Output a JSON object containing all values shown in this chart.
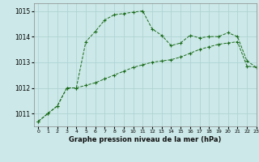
{
  "line1_x": [
    0,
    1,
    2,
    3,
    4,
    5,
    6,
    7,
    8,
    9,
    10,
    11,
    12,
    13,
    14,
    15,
    16,
    17,
    18,
    19,
    20,
    21,
    22,
    23
  ],
  "line1_y": [
    1010.7,
    1011.0,
    1011.3,
    1012.0,
    1012.0,
    1013.8,
    1014.2,
    1014.65,
    1014.85,
    1014.9,
    1014.95,
    1015.0,
    1014.3,
    1014.05,
    1013.65,
    1013.75,
    1014.05,
    1013.95,
    1014.0,
    1014.0,
    1014.15,
    1014.0,
    1013.05,
    1012.8
  ],
  "line2_x": [
    0,
    1,
    2,
    3,
    4,
    5,
    6,
    7,
    8,
    9,
    10,
    11,
    12,
    13,
    14,
    15,
    16,
    17,
    18,
    19,
    20,
    21,
    22,
    23
  ],
  "line2_y": [
    1010.7,
    1011.0,
    1011.3,
    1012.0,
    1012.0,
    1012.1,
    1012.2,
    1012.35,
    1012.5,
    1012.65,
    1012.8,
    1012.9,
    1013.0,
    1013.05,
    1013.1,
    1013.2,
    1013.35,
    1013.5,
    1013.6,
    1013.7,
    1013.75,
    1013.8,
    1012.85,
    1012.8
  ],
  "line_color": "#1a6b1a",
  "bg_color": "#cce8e8",
  "grid_color": "#aad0d0",
  "xlabel": "Graphe pression niveau de la mer (hPa)",
  "ylim": [
    1010.5,
    1015.3
  ],
  "xlim": [
    -0.5,
    23
  ],
  "yticks": [
    1011,
    1012,
    1013,
    1014,
    1015
  ],
  "xticks": [
    0,
    1,
    2,
    3,
    4,
    5,
    6,
    7,
    8,
    9,
    10,
    11,
    12,
    13,
    14,
    15,
    16,
    17,
    18,
    19,
    20,
    21,
    22,
    23
  ],
  "ytick_fontsize": 5.5,
  "xtick_fontsize": 4.5,
  "xlabel_fontsize": 6.0
}
